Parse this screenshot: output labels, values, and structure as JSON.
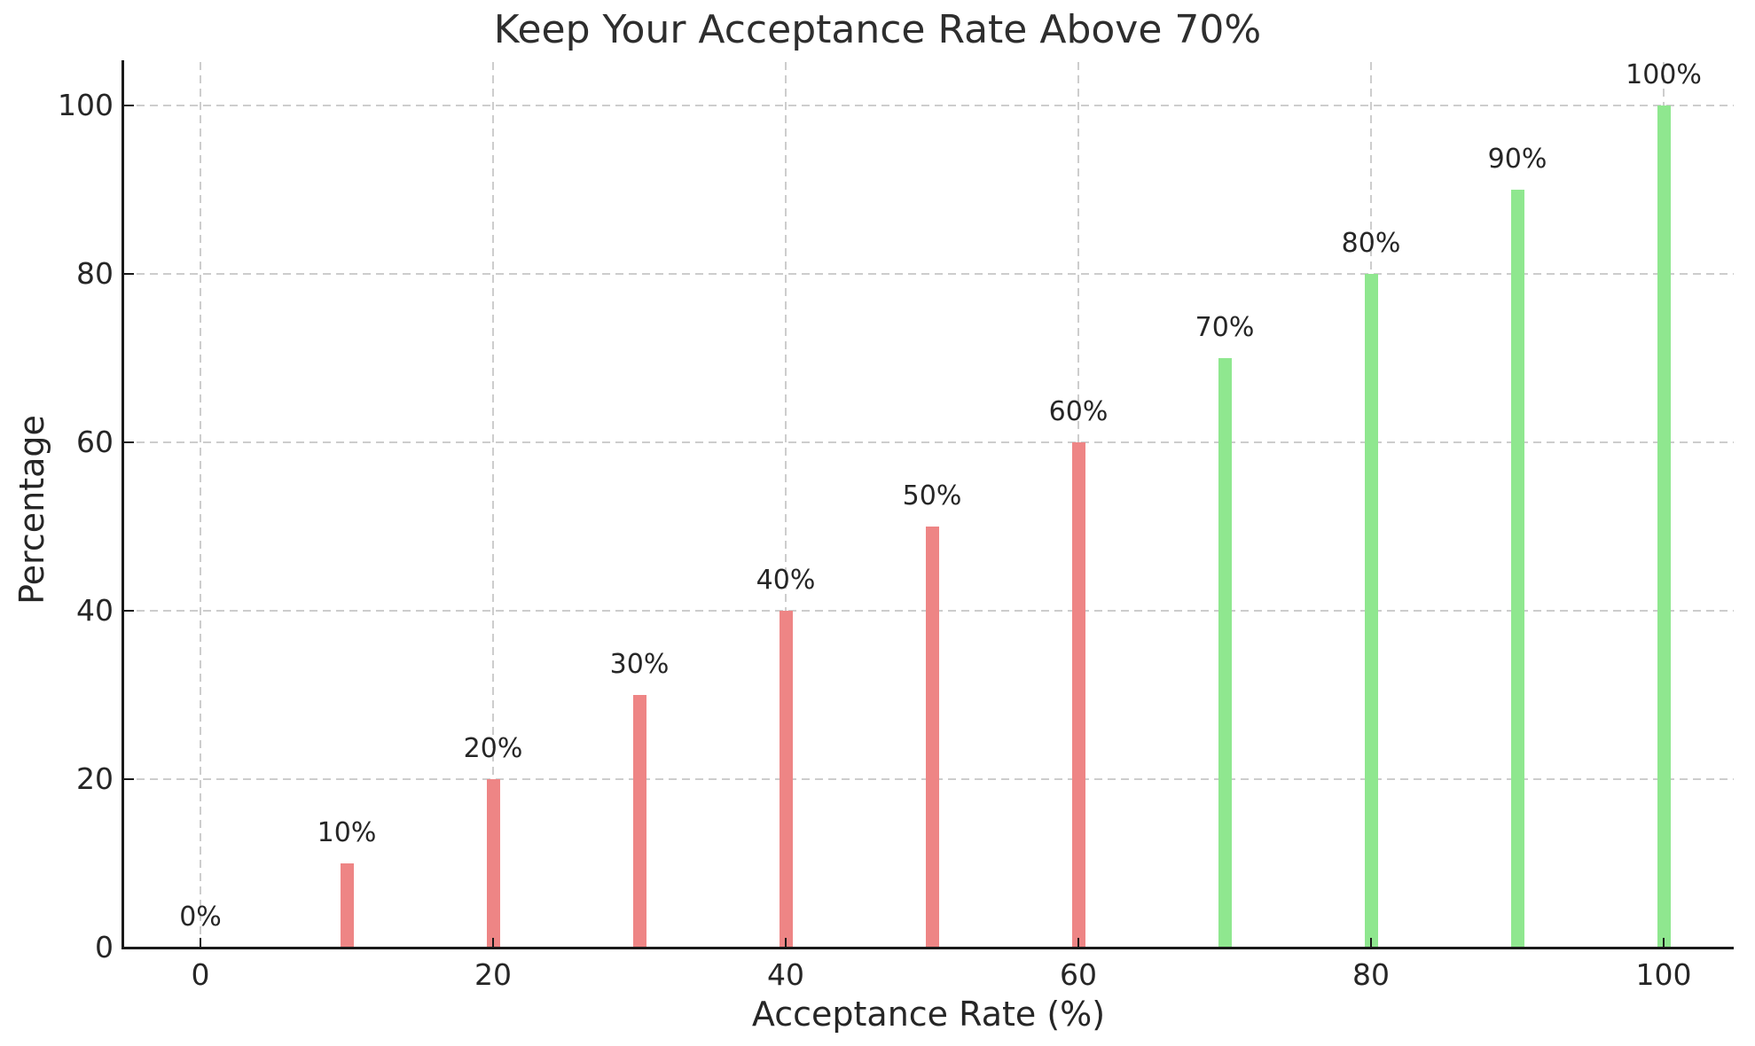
{
  "chart_data": {
    "type": "bar",
    "title": "Keep Your Acceptance Rate Above 70%",
    "xlabel": "Acceptance Rate (%)",
    "ylabel": "Percentage",
    "x": [
      0,
      10,
      20,
      30,
      40,
      50,
      60,
      70,
      80,
      90,
      100
    ],
    "values": [
      0,
      10,
      20,
      30,
      40,
      50,
      60,
      70,
      80,
      90,
      100
    ],
    "bar_labels": [
      "0%",
      "10%",
      "20%",
      "30%",
      "40%",
      "50%",
      "60%",
      "70%",
      "80%",
      "90%",
      "100%"
    ],
    "x_ticks": [
      0,
      20,
      40,
      60,
      80,
      100
    ],
    "y_ticks": [
      0,
      20,
      40,
      60,
      80,
      100
    ],
    "xlim": [
      -5.3,
      104.7
    ],
    "ylim": [
      0,
      105
    ],
    "threshold": 70,
    "grid": "dashed, both axes",
    "legend": "none",
    "colors": {
      "bar_below_threshold": "#ee8585",
      "bar_at_or_above_threshold": "#8fe78f",
      "grid": "#cdcdcd",
      "axis": "#1a1a1a",
      "text": "#262626",
      "background": "#ffffff"
    }
  }
}
